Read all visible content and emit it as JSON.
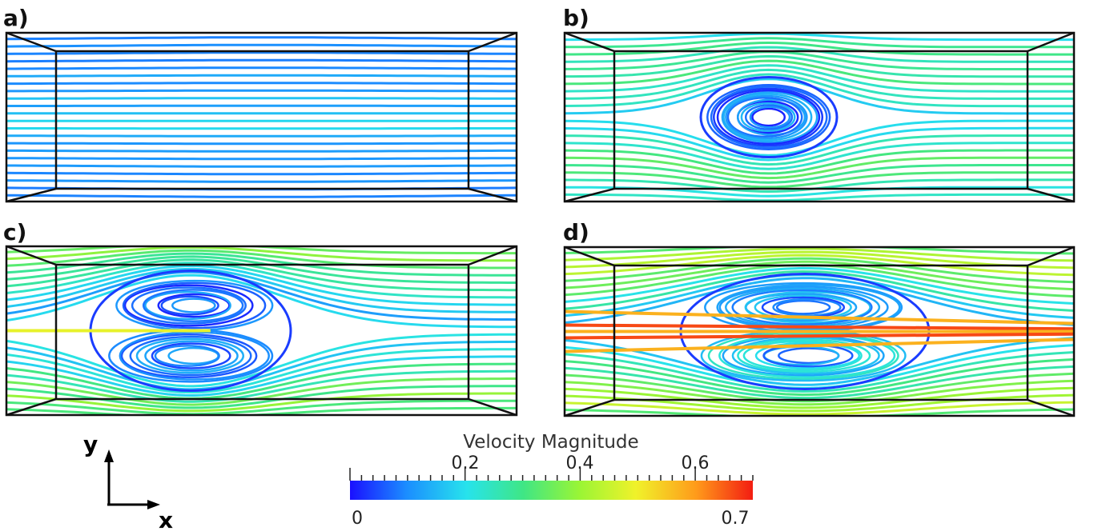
{
  "panels": [
    {
      "id": "a",
      "label": "a)"
    },
    {
      "id": "b",
      "label": "b)"
    },
    {
      "id": "c",
      "label": "c)"
    },
    {
      "id": "d",
      "label": "d)"
    }
  ],
  "axes_indicator": {
    "y_label": "y",
    "x_label": "x"
  },
  "colorbar": {
    "title": "Velocity Magnitude",
    "min_label": "0",
    "max_label": "0.7",
    "tick_labels": [
      "0.2",
      "0.4",
      "0.6"
    ],
    "range": [
      0,
      0.7
    ],
    "colormap": [
      "#1a10ff",
      "#1b8dff",
      "#27e3ec",
      "#3fe685",
      "#9af535",
      "#f0f22a",
      "#ff9a1a",
      "#f31d12"
    ]
  }
}
